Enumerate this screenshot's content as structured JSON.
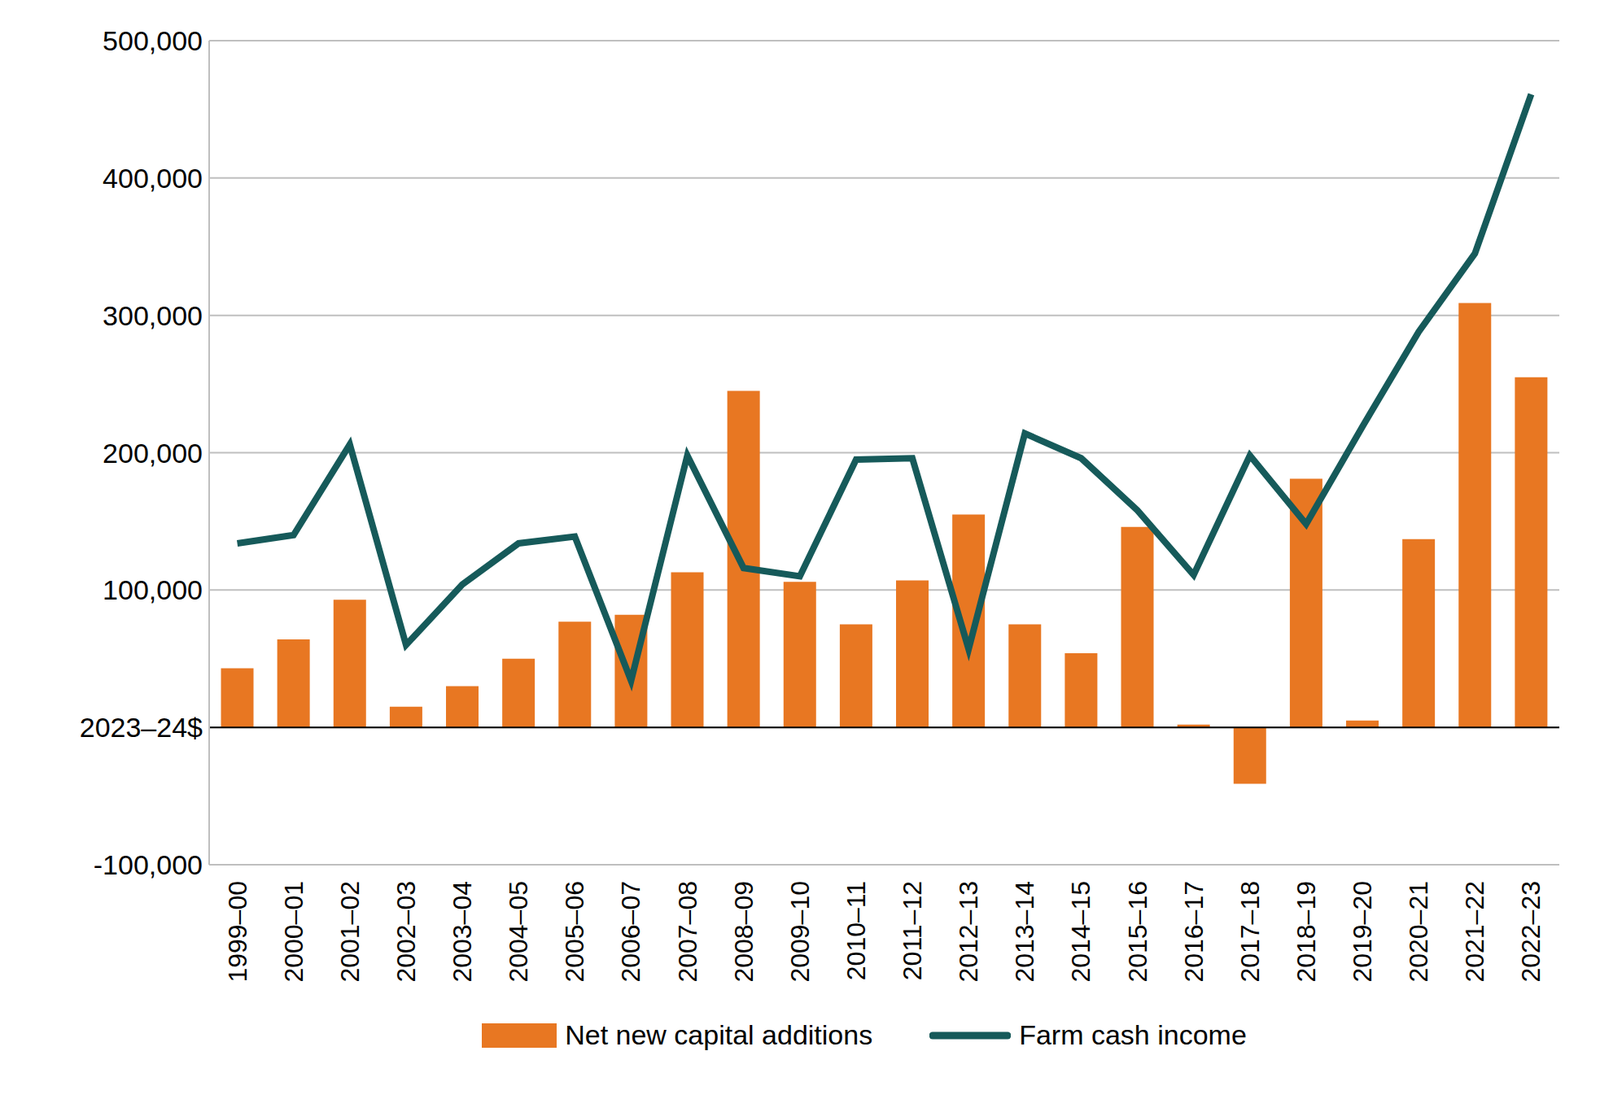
{
  "chart_data": {
    "type": "bar",
    "categories": [
      "1999–00",
      "2000–01",
      "2001–02",
      "2002–03",
      "2003–04",
      "2004–05",
      "2005–06",
      "2006–07",
      "2007–08",
      "2008–09",
      "2009–10",
      "2010–11",
      "2011–12",
      "2012–13",
      "2013–14",
      "2014–15",
      "2015–16",
      "2016–17",
      "2017–18",
      "2018–19",
      "2019–20",
      "2020–21",
      "2021–22",
      "2022–23"
    ],
    "series": [
      {
        "name": "Net new capital additions",
        "type": "bar",
        "color": "#E87722",
        "values": [
          43000,
          64000,
          93000,
          15000,
          30000,
          50000,
          77000,
          82000,
          113000,
          245000,
          106000,
          75000,
          107000,
          155000,
          75000,
          54000,
          146000,
          2000,
          -41000,
          181000,
          5000,
          137000,
          309000,
          255000
        ]
      },
      {
        "name": "Farm cash income",
        "type": "line",
        "color": "#165A5A",
        "values": [
          134000,
          140000,
          206000,
          60000,
          104000,
          134000,
          139000,
          34000,
          198000,
          116000,
          110000,
          195000,
          196000,
          57000,
          214000,
          196000,
          158000,
          111000,
          198000,
          148000,
          219000,
          288000,
          345000,
          461000
        ]
      }
    ],
    "ylim": [
      -100000,
      500000
    ],
    "yticks": [
      {
        "value": -100000,
        "label": "-100,000"
      },
      {
        "value": 0,
        "label": "2023–24$"
      },
      {
        "value": 100000,
        "label": "100,000"
      },
      {
        "value": 200000,
        "label": "200,000"
      },
      {
        "value": 300000,
        "label": "300,000"
      },
      {
        "value": 400000,
        "label": "400,000"
      },
      {
        "value": 500000,
        "label": "500,000"
      }
    ],
    "grid": true,
    "legend": "bottom"
  }
}
